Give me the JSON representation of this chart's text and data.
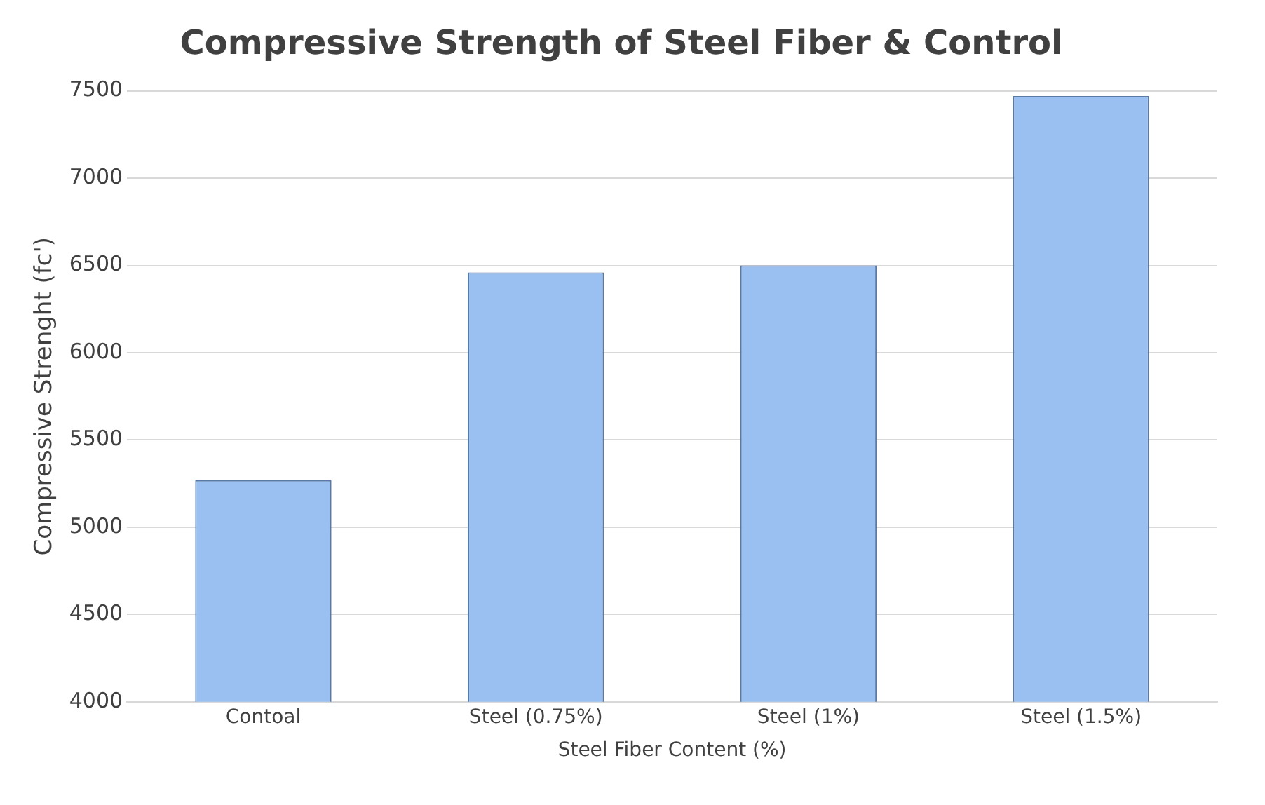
{
  "chart_data": {
    "type": "bar",
    "title": "Compressive Strength of Steel Fiber & Control",
    "xlabel": "Steel Fiber Content (%)",
    "ylabel": "Compressive Strenght (fc')",
    "categories": [
      "Contoal",
      "Steel (0.75%)",
      "Steel (1%)",
      "Steel (1.5%)"
    ],
    "values": [
      5270,
      6460,
      6500,
      7470
    ],
    "color": "#99c0f0",
    "ylim": [
      4000,
      7500
    ],
    "yticks": [
      4000,
      4500,
      5000,
      5500,
      6000,
      6500,
      7000,
      7500
    ],
    "grid": "y"
  }
}
